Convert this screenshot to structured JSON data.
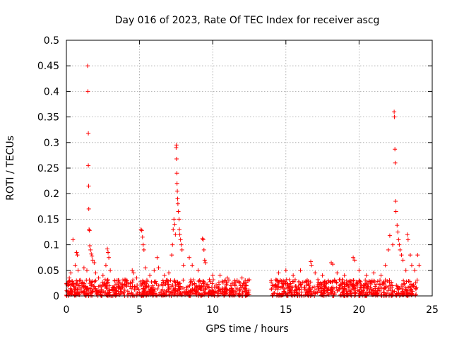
{
  "chart_data": {
    "type": "scatter",
    "title": "Day 016 of 2023, Rate Of TEC Index for receiver ascg",
    "xlabel": "GPS time / hours",
    "ylabel": "ROTI / TECUs",
    "xlim": [
      0,
      25
    ],
    "ylim": [
      0,
      0.5
    ],
    "grid": true,
    "xticks": [
      0,
      5,
      10,
      15,
      20,
      25
    ],
    "xtick_labels": [
      "0",
      "5",
      "10",
      "15",
      "20",
      "25"
    ],
    "yticks": [
      0,
      0.05,
      0.1,
      0.15,
      0.2,
      0.25,
      0.3,
      0.35,
      0.4,
      0.45,
      0.5
    ],
    "ytick_labels": [
      "0",
      "0.05",
      "0.1",
      "0.15",
      "0.2",
      "0.25",
      "0.3",
      "0.35",
      "0.4",
      "0.45",
      "0.5"
    ],
    "marker": "+",
    "series": [
      {
        "name": "ROTI",
        "color": "#ff0000",
        "points": [
          [
            0.1,
            0.02
          ],
          [
            0.2,
            0.035
          ],
          [
            0.3,
            0.045
          ],
          [
            0.4,
            0.028
          ],
          [
            0.45,
            0.11
          ],
          [
            0.6,
            0.06
          ],
          [
            0.7,
            0.085
          ],
          [
            0.75,
            0.08
          ],
          [
            0.8,
            0.05
          ],
          [
            0.9,
            0.03
          ],
          [
            1.2,
            0.055
          ],
          [
            1.4,
            0.05
          ],
          [
            1.45,
            0.45
          ],
          [
            1.47,
            0.4
          ],
          [
            1.5,
            0.318
          ],
          [
            1.5,
            0.255
          ],
          [
            1.52,
            0.215
          ],
          [
            1.53,
            0.17
          ],
          [
            1.55,
            0.13
          ],
          [
            1.58,
            0.128
          ],
          [
            1.6,
            0.098
          ],
          [
            1.65,
            0.09
          ],
          [
            1.7,
            0.082
          ],
          [
            1.75,
            0.078
          ],
          [
            1.8,
            0.07
          ],
          [
            1.9,
            0.065
          ],
          [
            2.0,
            0.045
          ],
          [
            2.2,
            0.035
          ],
          [
            2.5,
            0.04
          ],
          [
            2.7,
            0.06
          ],
          [
            2.8,
            0.092
          ],
          [
            2.85,
            0.085
          ],
          [
            2.9,
            0.075
          ],
          [
            3.0,
            0.05
          ],
          [
            3.3,
            0.03
          ],
          [
            3.6,
            0.025
          ],
          [
            4.0,
            0.03
          ],
          [
            4.5,
            0.05
          ],
          [
            4.6,
            0.045
          ],
          [
            4.8,
            0.035
          ],
          [
            5.1,
            0.13
          ],
          [
            5.15,
            0.128
          ],
          [
            5.2,
            0.115
          ],
          [
            5.25,
            0.1
          ],
          [
            5.3,
            0.09
          ],
          [
            5.4,
            0.055
          ],
          [
            5.7,
            0.04
          ],
          [
            6.0,
            0.05
          ],
          [
            6.2,
            0.075
          ],
          [
            6.3,
            0.055
          ],
          [
            6.7,
            0.04
          ],
          [
            7.0,
            0.045
          ],
          [
            7.2,
            0.08
          ],
          [
            7.25,
            0.1
          ],
          [
            7.3,
            0.13
          ],
          [
            7.35,
            0.15
          ],
          [
            7.4,
            0.14
          ],
          [
            7.45,
            0.12
          ],
          [
            7.5,
            0.29
          ],
          [
            7.52,
            0.295
          ],
          [
            7.53,
            0.268
          ],
          [
            7.55,
            0.24
          ],
          [
            7.56,
            0.22
          ],
          [
            7.58,
            0.205
          ],
          [
            7.6,
            0.19
          ],
          [
            7.62,
            0.18
          ],
          [
            7.65,
            0.165
          ],
          [
            7.7,
            0.15
          ],
          [
            7.72,
            0.13
          ],
          [
            7.75,
            0.12
          ],
          [
            7.8,
            0.11
          ],
          [
            7.85,
            0.1
          ],
          [
            7.9,
            0.09
          ],
          [
            8.0,
            0.06
          ],
          [
            8.4,
            0.075
          ],
          [
            8.6,
            0.06
          ],
          [
            9.0,
            0.05
          ],
          [
            9.3,
            0.112
          ],
          [
            9.35,
            0.11
          ],
          [
            9.4,
            0.09
          ],
          [
            9.45,
            0.07
          ],
          [
            9.5,
            0.065
          ],
          [
            10.0,
            0.04
          ],
          [
            10.5,
            0.04
          ],
          [
            11.0,
            0.035
          ],
          [
            11.5,
            0.03
          ],
          [
            12.0,
            0.035
          ],
          [
            12.4,
            0.03
          ],
          [
            14.0,
            0.03
          ],
          [
            14.5,
            0.045
          ],
          [
            15.0,
            0.05
          ],
          [
            15.5,
            0.04
          ],
          [
            16.0,
            0.05
          ],
          [
            16.7,
            0.067
          ],
          [
            16.75,
            0.06
          ],
          [
            17.0,
            0.045
          ],
          [
            17.5,
            0.04
          ],
          [
            18.1,
            0.065
          ],
          [
            18.2,
            0.062
          ],
          [
            18.5,
            0.045
          ],
          [
            19.0,
            0.04
          ],
          [
            19.6,
            0.075
          ],
          [
            19.7,
            0.07
          ],
          [
            20.0,
            0.05
          ],
          [
            20.5,
            0.04
          ],
          [
            21.0,
            0.045
          ],
          [
            21.5,
            0.04
          ],
          [
            21.8,
            0.06
          ],
          [
            22.0,
            0.09
          ],
          [
            22.1,
            0.118
          ],
          [
            22.3,
            0.1
          ],
          [
            22.4,
            0.36
          ],
          [
            22.42,
            0.35
          ],
          [
            22.45,
            0.287
          ],
          [
            22.47,
            0.26
          ],
          [
            22.5,
            0.185
          ],
          [
            22.52,
            0.165
          ],
          [
            22.6,
            0.138
          ],
          [
            22.65,
            0.125
          ],
          [
            22.7,
            0.11
          ],
          [
            22.75,
            0.1
          ],
          [
            22.8,
            0.09
          ],
          [
            22.9,
            0.08
          ],
          [
            23.0,
            0.07
          ],
          [
            23.2,
            0.05
          ],
          [
            23.3,
            0.12
          ],
          [
            23.35,
            0.11
          ],
          [
            23.5,
            0.08
          ],
          [
            23.6,
            0.06
          ],
          [
            23.8,
            0.05
          ],
          [
            24.0,
            0.08
          ],
          [
            24.1,
            0.06
          ]
        ],
        "baseline_band": {
          "segments": [
            [
              0.0,
              12.5
            ],
            [
              14.0,
              24.0
            ]
          ],
          "y_min": 0.0,
          "y_max": 0.032
        }
      }
    ]
  }
}
